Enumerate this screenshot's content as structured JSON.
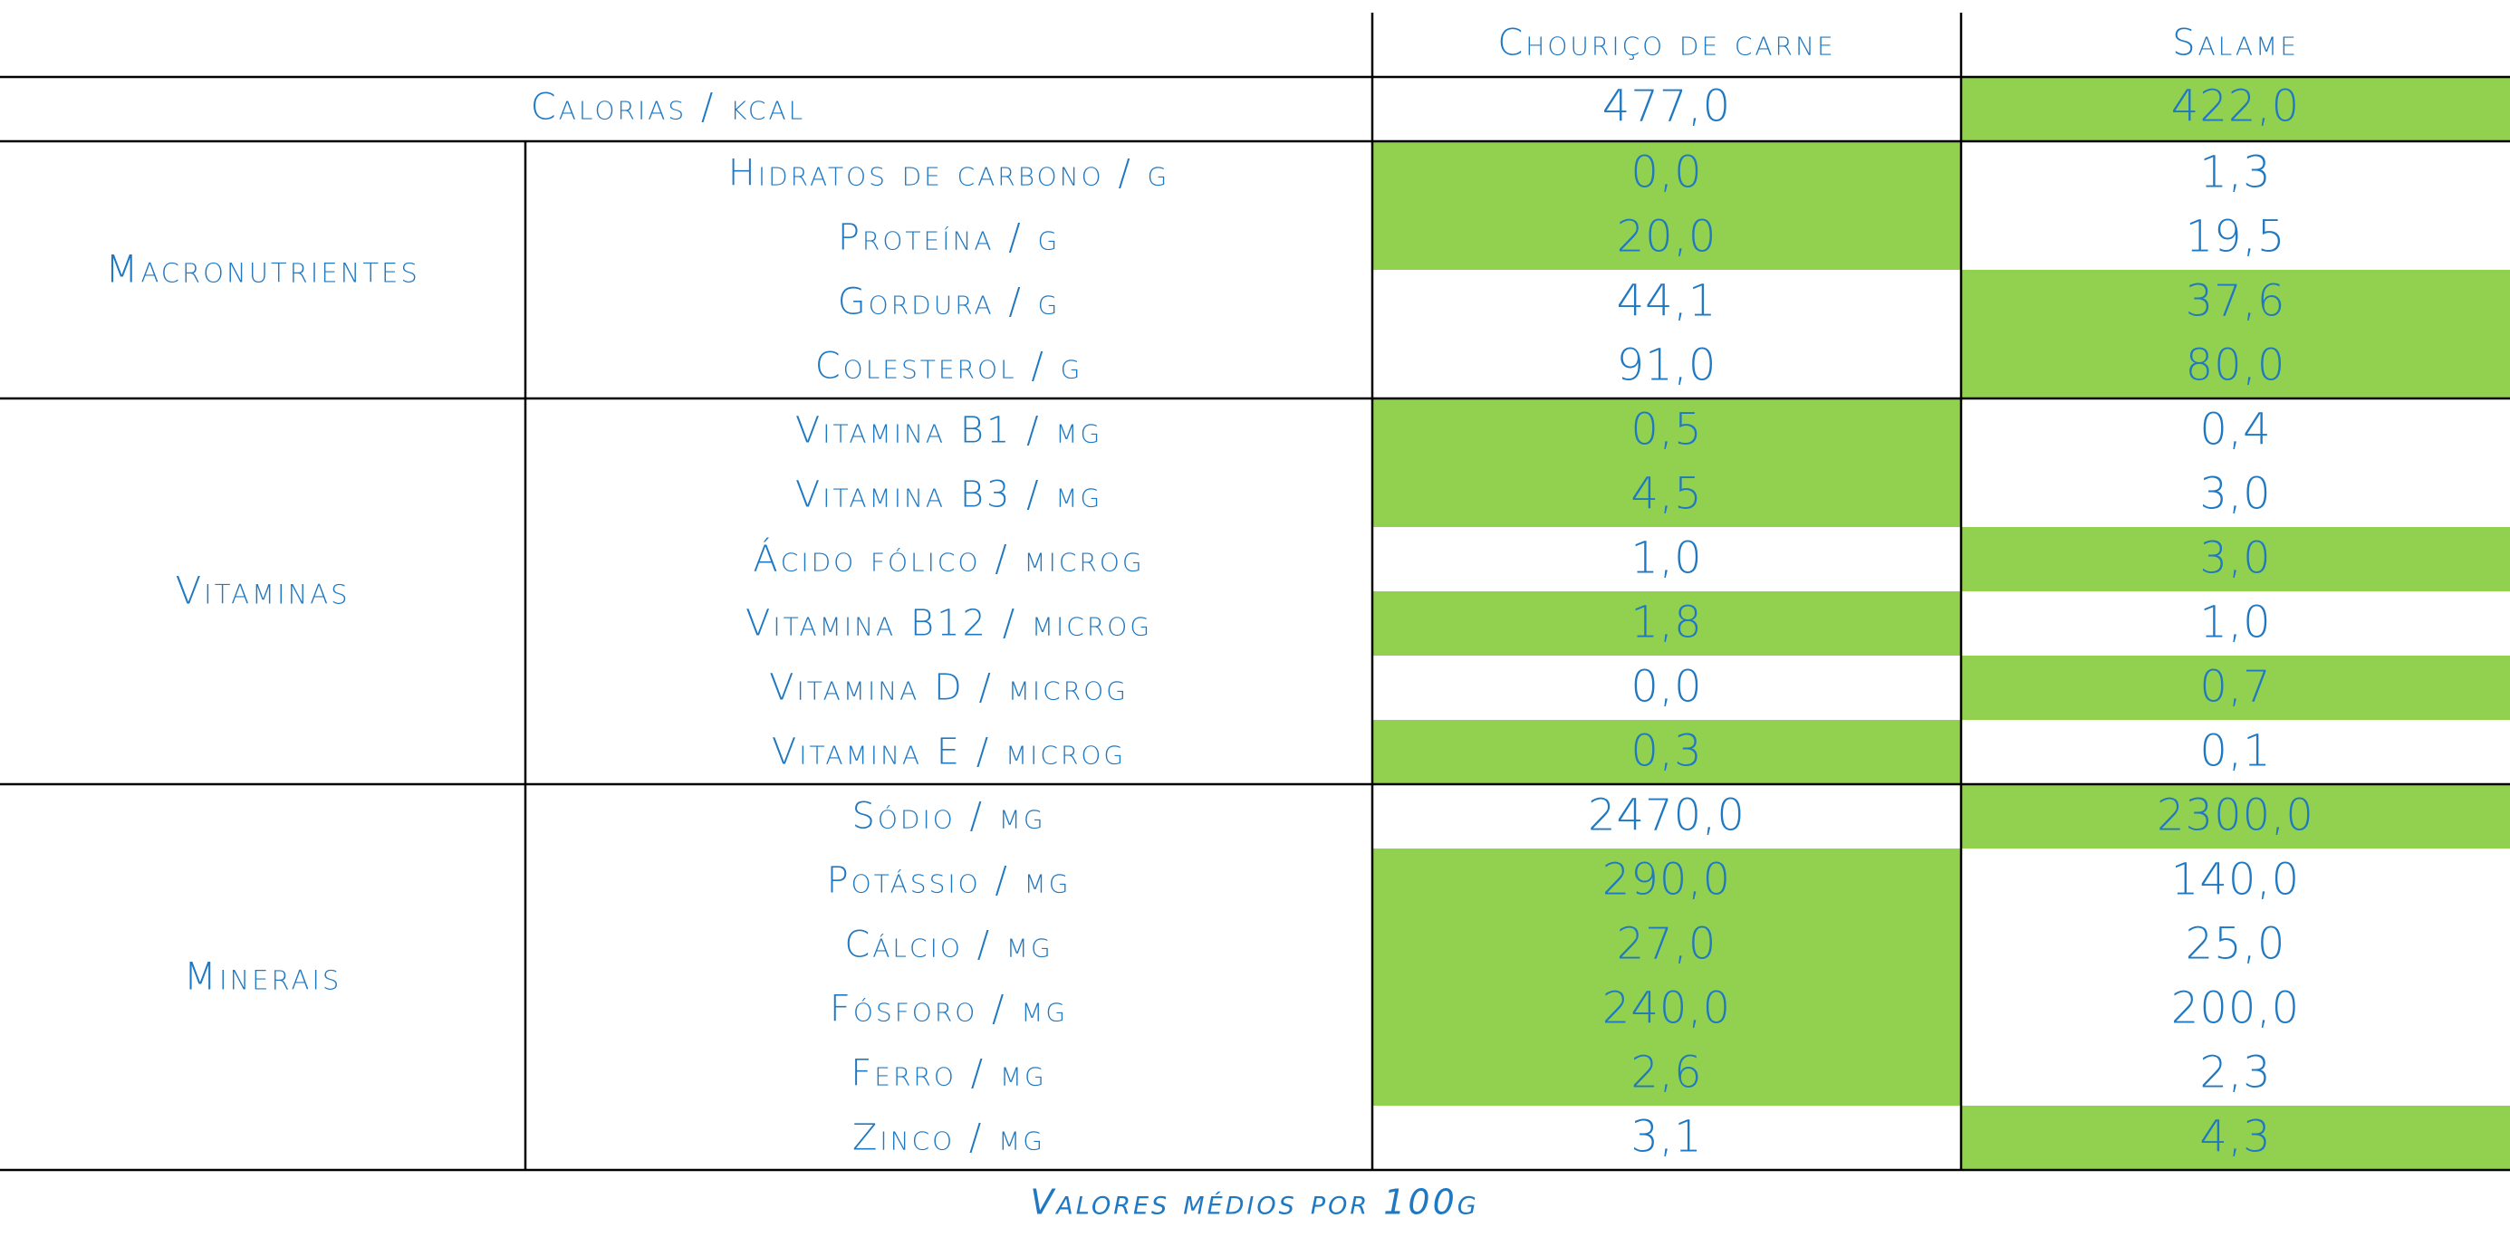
{
  "colors": {
    "text": "#1f78c2",
    "highlight": "#92d050",
    "lines": "#000000"
  },
  "headers": {
    "col1": "Chouriço de carne",
    "col2": "Salame"
  },
  "calories": {
    "label": "Calorias / kcal",
    "v1": "477,0",
    "v2": "422,0",
    "hl": "v2"
  },
  "groups": [
    {
      "name": "Macronutrientes",
      "rows": [
        {
          "label": "Hidratos de carbono / g",
          "v1": "0,0",
          "v2": "1,3",
          "hl": "v1"
        },
        {
          "label": "Proteína / g",
          "v1": "20,0",
          "v2": "19,5",
          "hl": "v1"
        },
        {
          "label": "Gordura / g",
          "v1": "44,1",
          "v2": "37,6",
          "hl": "v2"
        },
        {
          "label": "Colesterol / g",
          "v1": "91,0",
          "v2": "80,0",
          "hl": "v2"
        }
      ]
    },
    {
      "name": "Vitaminas",
      "rows": [
        {
          "label": "Vitamina B1 / mg",
          "v1": "0,5",
          "v2": "0,4",
          "hl": "v1"
        },
        {
          "label": "Vitamina B3 / mg",
          "v1": "4,5",
          "v2": "3,0",
          "hl": "v1"
        },
        {
          "label": "Ácido fólico / microg",
          "v1": "1,0",
          "v2": "3,0",
          "hl": "v2"
        },
        {
          "label": "Vitamina B12 / microg",
          "v1": "1,8",
          "v2": "1,0",
          "hl": "v1"
        },
        {
          "label": "Vitamina D / microg",
          "v1": "0,0",
          "v2": "0,7",
          "hl": "v2"
        },
        {
          "label": "Vitamina E / microg",
          "v1": "0,3",
          "v2": "0,1",
          "hl": "v1"
        }
      ]
    },
    {
      "name": "Minerais",
      "rows": [
        {
          "label": "Sódio / mg",
          "v1": "2470,0",
          "v2": "2300,0",
          "hl": "v2"
        },
        {
          "label": "Potássio / mg",
          "v1": "290,0",
          "v2": "140,0",
          "hl": "v1"
        },
        {
          "label": "Cálcio / mg",
          "v1": "27,0",
          "v2": "25,0",
          "hl": "v1"
        },
        {
          "label": "Fósforo / mg",
          "v1": "240,0",
          "v2": "200,0",
          "hl": "v1"
        },
        {
          "label": "Ferro / mg",
          "v1": "2,6",
          "v2": "2,3",
          "hl": "v1"
        },
        {
          "label": "Zinco / mg",
          "v1": "3,1",
          "v2": "4,3",
          "hl": "v2"
        }
      ]
    }
  ],
  "footnote": "Valores médios por 100g"
}
